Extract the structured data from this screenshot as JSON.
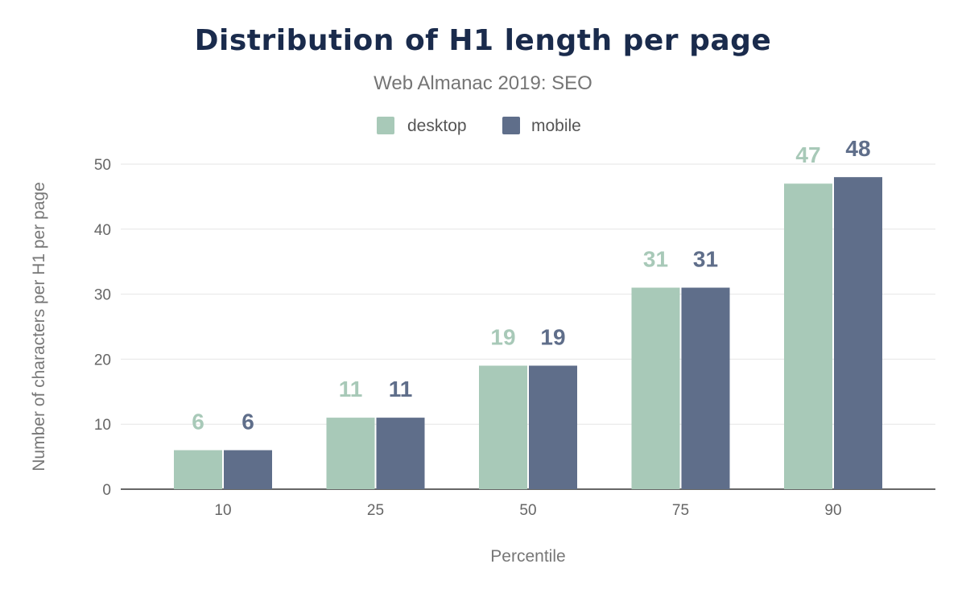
{
  "chart_data": {
    "type": "bar",
    "title": "Distribution of H1 length per page",
    "subtitle": "Web Almanac 2019: SEO",
    "xlabel": "Percentile",
    "ylabel": "Number of characters per H1 per page",
    "categories": [
      "10",
      "25",
      "50",
      "75",
      "90"
    ],
    "series": [
      {
        "name": "desktop",
        "color": "#a8c9b8",
        "values": [
          6,
          11,
          19,
          31,
          47
        ]
      },
      {
        "name": "mobile",
        "color": "#5f6e8a",
        "values": [
          6,
          11,
          19,
          31,
          48
        ]
      }
    ],
    "ylim": [
      0,
      50
    ],
    "yticks": [
      0,
      10,
      20,
      30,
      40,
      50
    ],
    "grid": true,
    "legend": "top-center"
  }
}
